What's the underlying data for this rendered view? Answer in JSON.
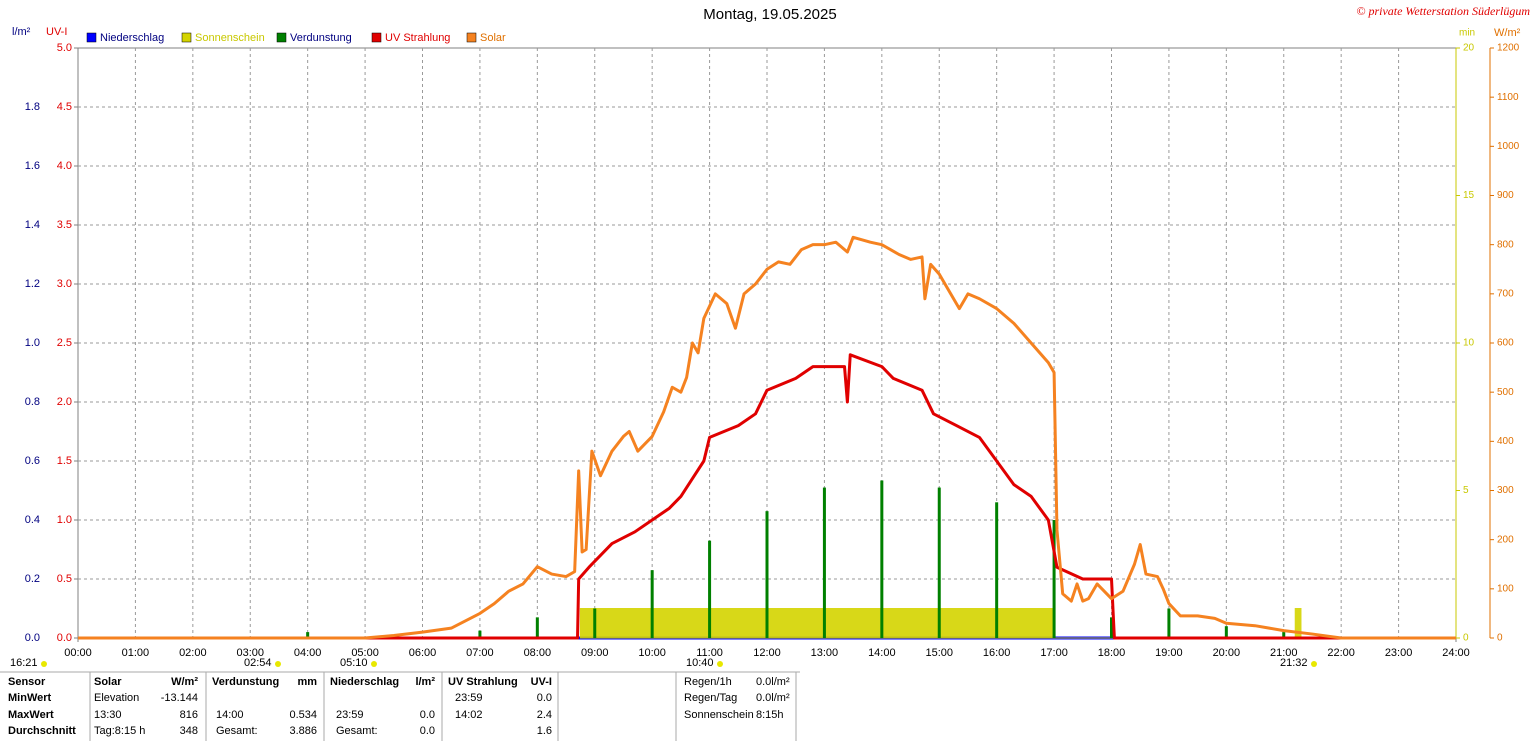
{
  "chart_data": {
    "type": "combo",
    "title": "Montag, 19.05.2025",
    "copyright": "© private Wetterstation Süderlügum",
    "y_label": "l/m²",
    "y2_label": "UV-I",
    "y3_label": "min",
    "y4_label": "W/m²",
    "xlim": [
      0,
      24
    ],
    "xticks": [
      {
        "value": 0,
        "label": "00:00"
      },
      {
        "value": 1,
        "label": "01:00"
      },
      {
        "value": 2,
        "label": "02:00"
      },
      {
        "value": 3,
        "label": "03:00"
      },
      {
        "value": 4,
        "label": "04:00"
      },
      {
        "value": 5,
        "label": "05:00"
      },
      {
        "value": 6,
        "label": "06:00"
      },
      {
        "value": 7,
        "label": "07:00"
      },
      {
        "value": 8,
        "label": "08:00"
      },
      {
        "value": 9,
        "label": "09:00"
      },
      {
        "value": 10,
        "label": "10:00"
      },
      {
        "value": 11,
        "label": "11:00"
      },
      {
        "value": 12,
        "label": "12:00"
      },
      {
        "value": 13,
        "label": "13:00"
      },
      {
        "value": 14,
        "label": "14:00"
      },
      {
        "value": 15,
        "label": "15:00"
      },
      {
        "value": 16,
        "label": "16:00"
      },
      {
        "value": 17,
        "label": "17:00"
      },
      {
        "value": 18,
        "label": "18:00"
      },
      {
        "value": 19,
        "label": "19:00"
      },
      {
        "value": 20,
        "label": "20:00"
      },
      {
        "value": 21,
        "label": "21:00"
      },
      {
        "value": 22,
        "label": "22:00"
      },
      {
        "value": 23,
        "label": "23:00"
      },
      {
        "value": 24,
        "label": "24:00"
      }
    ],
    "ylim": [
      0,
      2
    ],
    "yticks": [
      {
        "value": 0,
        "label": "0.0"
      },
      {
        "value": 0.2,
        "label": "0.2"
      },
      {
        "value": 0.4,
        "label": "0.4"
      },
      {
        "value": 0.6,
        "label": "0.6"
      },
      {
        "value": 0.8,
        "label": "0.8"
      },
      {
        "value": 1,
        "label": "1.0"
      },
      {
        "value": 1.2,
        "label": "1.2"
      },
      {
        "value": 1.4,
        "label": "1.4"
      },
      {
        "value": 1.6,
        "label": "1.6"
      },
      {
        "value": 1.8,
        "label": "1.8"
      }
    ],
    "y2lim": [
      0,
      5
    ],
    "y2ticks": [
      {
        "value": 0,
        "label": "0.0"
      },
      {
        "value": 0.5,
        "label": "0.5"
      },
      {
        "value": 1,
        "label": "1.0"
      },
      {
        "value": 1.5,
        "label": "1.5"
      },
      {
        "value": 2,
        "label": "2.0"
      },
      {
        "value": 2.5,
        "label": "2.5"
      },
      {
        "value": 3,
        "label": "3.0"
      },
      {
        "value": 3.5,
        "label": "3.5"
      },
      {
        "value": 4,
        "label": "4.0"
      },
      {
        "value": 4.5,
        "label": "4.5"
      },
      {
        "value": 5,
        "label": "5.0"
      }
    ],
    "y3lim": [
      0,
      20
    ],
    "y3ticks": [
      0,
      5,
      10,
      15,
      20
    ],
    "y4lim": [
      0,
      1200
    ],
    "y4ticks": [
      0,
      100,
      200,
      300,
      400,
      500,
      600,
      700,
      800,
      900,
      1000,
      1100,
      1200
    ],
    "grid": true,
    "series": [
      {
        "name": "Niederschlag",
        "type": "line",
        "axis": "y",
        "color": "#0000ff",
        "x": [
          0,
          24
        ],
        "values": [
          0,
          0
        ]
      },
      {
        "name": "Sonnenschein",
        "type": "area",
        "axis": "y3",
        "color": "#d4d400",
        "x": [
          8.75,
          8.75,
          17,
          17,
          21.2,
          21.2,
          21.3,
          21.3
        ],
        "values": [
          0,
          1,
          1,
          0,
          0,
          1,
          1,
          0
        ]
      },
      {
        "name": "Verdunstung",
        "type": "bar",
        "axis": "y",
        "color": "#008000",
        "x": [
          4,
          7,
          8,
          9,
          10,
          11,
          12,
          13,
          14,
          15,
          16,
          17,
          18,
          19,
          20,
          21
        ],
        "values": [
          0.02,
          0.025,
          0.07,
          0.1,
          0.23,
          0.33,
          0.43,
          0.51,
          0.534,
          0.51,
          0.46,
          0.4,
          0.07,
          0.1,
          0.04,
          0.02
        ]
      },
      {
        "name": "UV Strahlung",
        "type": "line",
        "axis": "y2",
        "color": "#e00000",
        "x": [
          0,
          8.7,
          8.72,
          8.9,
          9.3,
          9.7,
          10,
          10.3,
          10.5,
          10.7,
          10.9,
          11,
          11.5,
          11.8,
          12,
          12.5,
          12.8,
          13.35,
          13.4,
          13.45,
          14,
          14.2,
          14.7,
          14.9,
          15.3,
          15.7,
          16,
          16.3,
          16.6,
          16.9,
          17.05,
          17.5,
          18,
          18.05,
          24
        ],
        "values": [
          0,
          0,
          0.5,
          0.6,
          0.8,
          0.9,
          1.0,
          1.1,
          1.2,
          1.35,
          1.5,
          1.7,
          1.8,
          1.9,
          2.1,
          2.2,
          2.3,
          2.3,
          2.0,
          2.4,
          2.3,
          2.2,
          2.1,
          1.9,
          1.8,
          1.7,
          1.5,
          1.3,
          1.2,
          1.0,
          0.6,
          0.5,
          0.5,
          0,
          0
        ]
      },
      {
        "name": "Solar",
        "type": "line",
        "axis": "y4",
        "color": "#f58220",
        "x": [
          0,
          5,
          5.5,
          6,
          6.5,
          7,
          7.25,
          7.5,
          7.75,
          8,
          8.25,
          8.5,
          8.65,
          8.72,
          8.78,
          8.85,
          8.95,
          9.1,
          9.3,
          9.5,
          9.6,
          9.75,
          10,
          10.2,
          10.35,
          10.5,
          10.6,
          10.7,
          10.8,
          10.9,
          11.1,
          11.3,
          11.45,
          11.6,
          11.8,
          12,
          12.2,
          12.4,
          12.6,
          12.8,
          13,
          13.2,
          13.4,
          13.5,
          13.8,
          14,
          14.3,
          14.5,
          14.7,
          14.75,
          14.85,
          15,
          15.2,
          15.35,
          15.5,
          15.7,
          16,
          16.3,
          16.6,
          16.9,
          17,
          17.05,
          17.15,
          17.3,
          17.4,
          17.5,
          17.6,
          17.75,
          18,
          18.2,
          18.4,
          18.5,
          18.6,
          18.8,
          18.9,
          19,
          19.2,
          19.5,
          19.8,
          20,
          20.5,
          21,
          21.5,
          22,
          24
        ],
        "values": [
          0,
          0,
          5,
          12,
          20,
          50,
          70,
          95,
          110,
          145,
          130,
          125,
          135,
          340,
          175,
          180,
          380,
          330,
          380,
          410,
          420,
          380,
          410,
          460,
          510,
          500,
          530,
          600,
          580,
          650,
          700,
          680,
          630,
          700,
          720,
          750,
          765,
          760,
          790,
          800,
          800,
          805,
          785,
          815,
          805,
          800,
          780,
          770,
          775,
          690,
          760,
          740,
          700,
          670,
          700,
          690,
          670,
          640,
          600,
          560,
          540,
          220,
          90,
          75,
          110,
          75,
          80,
          110,
          80,
          95,
          150,
          190,
          130,
          125,
          100,
          70,
          45,
          45,
          40,
          30,
          25,
          15,
          8,
          0,
          0
        ]
      }
    ],
    "time_markers": [
      "16:21",
      "02:54",
      "05:10",
      "10:40",
      "21:32"
    ]
  },
  "stats_table": {
    "header": [
      "Sensor",
      "Solar",
      "W/m²",
      "Verdunstung",
      "mm",
      "Niederschlag",
      "l/m²",
      "UV Strahlung",
      "UV-I"
    ],
    "rows": [
      [
        "MinWert",
        "Elevation",
        "-13.144",
        null,
        null,
        null,
        null,
        "23:59",
        "0.0"
      ],
      [
        "MaxWert",
        "13:30",
        "816",
        "14:00",
        "0.534",
        "23:59",
        "0.0",
        "14:02",
        "2.4"
      ],
      [
        "Durchschnitt",
        "Tag:8:15 h",
        "348",
        "Gesamt:",
        "3.886",
        "Gesamt:",
        "0.0",
        null,
        "1.6"
      ]
    ],
    "extra": [
      [
        "Regen/1h",
        "0.0l/m²"
      ],
      [
        "Regen/Tag",
        "0.0l/m²"
      ],
      [
        "Sonnenschein",
        "8:15h"
      ]
    ]
  }
}
